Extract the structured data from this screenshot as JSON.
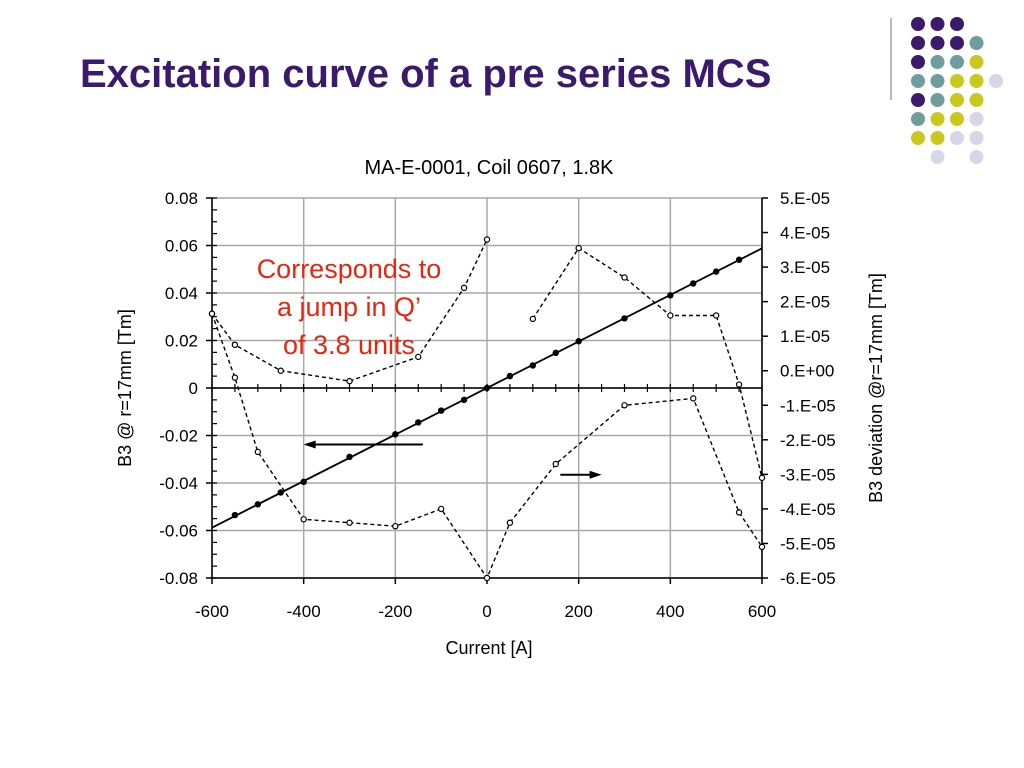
{
  "slide": {
    "title": "Excitation curve of a pre series MCS"
  },
  "decoration": {
    "dots": [
      [
        "#3b1a6e",
        "#3b1a6e",
        "#3b1a6e",
        "",
        ""
      ],
      [
        "#3b1a6e",
        "#3b1a6e",
        "#3b1a6e",
        "#6f9c9c",
        ""
      ],
      [
        "#3b1a6e",
        "#6f9c9c",
        "#6f9c9c",
        "#c8c81e",
        ""
      ],
      [
        "#6f9c9c",
        "#6f9c9c",
        "#c8c81e",
        "#c8c81e",
        "#d6d6e8"
      ],
      [
        "#3b1a6e",
        "#6f9c9c",
        "#c8c81e",
        "#c8c81e",
        ""
      ],
      [
        "#6f9c9c",
        "#c8c81e",
        "#c8c81e",
        "#d6d6e8",
        ""
      ],
      [
        "#c8c81e",
        "#c8c81e",
        "#d6d6e8",
        "#d6d6e8",
        ""
      ],
      [
        "",
        "#d6d6e8",
        "",
        "#d6d6e8",
        ""
      ]
    ]
  },
  "callout": {
    "lines": [
      "Corresponds to",
      "a jump in Q’",
      "of 3.8 units"
    ],
    "color": "#e8250f"
  },
  "chart_data": {
    "type": "line",
    "title": "MA-E-0001, Coil 0607, 1.8K",
    "xlabel": "Current [A]",
    "ylabel": "B3 @ r=17mm [Tm]",
    "y2label": "B3 deviation @r=17mm [Tm]",
    "xlim": [
      -600,
      600
    ],
    "ylim": [
      -0.08,
      0.08
    ],
    "y2lim": [
      -6e-05,
      5e-05
    ],
    "grid": true,
    "xticks": [
      -600,
      -400,
      -200,
      0,
      200,
      400,
      600
    ],
    "xtick_labels": [
      "-600",
      "-400",
      "-200",
      "0",
      "200",
      "400",
      "600"
    ],
    "yticks": [
      0.08,
      0.06,
      0.04,
      0.02,
      0,
      -0.02,
      -0.04,
      -0.06,
      -0.08
    ],
    "ytick_labels": [
      "0.08",
      "0.06",
      "0.04",
      "0.02",
      "0",
      "-0.02",
      "-0.04",
      "-0.06",
      "-0.08"
    ],
    "y2ticks": [
      5e-05,
      4e-05,
      3e-05,
      2e-05,
      1e-05,
      0,
      -1e-05,
      -2e-05,
      -3e-05,
      -4e-05,
      -5e-05,
      -6e-05
    ],
    "y2tick_labels": [
      "5.E-05",
      "4.E-05",
      "3.E-05",
      "2.E-05",
      "1.E-05",
      "0.E+00",
      "-1.E-05",
      "-2.E-05",
      "-3.E-05",
      "-4.E-05",
      "-5.E-05",
      "-6.E-05"
    ],
    "fit_line": {
      "x": [
        -600,
        600
      ],
      "y": [
        -0.0588,
        0.0588
      ]
    },
    "series": [
      {
        "axis": "left",
        "marker": "filled",
        "points": [
          [
            -550,
            -0.0535
          ],
          [
            -500,
            -0.049
          ],
          [
            -450,
            -0.044
          ],
          [
            -400,
            -0.0395
          ],
          [
            -300,
            -0.029
          ],
          [
            -200,
            -0.0195
          ],
          [
            -150,
            -0.0145
          ],
          [
            -100,
            -0.0095
          ],
          [
            -50,
            -0.005
          ],
          [
            0,
            0.0
          ],
          [
            50,
            0.005
          ],
          [
            100,
            0.0095
          ],
          [
            150,
            0.0148
          ],
          [
            200,
            0.0197
          ],
          [
            300,
            0.0293
          ],
          [
            400,
            0.039
          ],
          [
            450,
            0.044
          ],
          [
            500,
            0.049
          ],
          [
            550,
            0.054
          ]
        ]
      },
      {
        "axis": "right",
        "marker": "open",
        "segments": [
          [
            [
              -600,
              1.65e-05
            ],
            [
              -550,
              7.5e-06
            ],
            [
              -450,
              0.0
            ],
            [
              -300,
              -3e-06
            ],
            [
              -150,
              4e-06
            ],
            [
              -50,
              2.4e-05
            ],
            [
              0,
              3.8e-05
            ]
          ],
          [
            [
              100,
              1.5e-05
            ],
            [
              200,
              3.55e-05
            ],
            [
              300,
              2.7e-05
            ],
            [
              400,
              1.6e-05
            ],
            [
              500,
              1.6e-05
            ],
            [
              550,
              -4e-06
            ],
            [
              600,
              -3.1e-05
            ]
          ]
        ]
      },
      {
        "axis": "right",
        "marker": "open",
        "segments": [
          [
            [
              -600,
              1.65e-05
            ],
            [
              -550,
              -2e-06
            ],
            [
              -500,
              -2.35e-05
            ],
            [
              -400,
              -4.3e-05
            ],
            [
              -300,
              -4.4e-05
            ],
            [
              -200,
              -4.5e-05
            ],
            [
              -100,
              -4e-05
            ],
            [
              0,
              -6e-05
            ],
            [
              50,
              -4.4e-05
            ],
            [
              150,
              -2.7e-05
            ],
            [
              300,
              -1e-05
            ],
            [
              450,
              -8e-06
            ],
            [
              550,
              -4.1e-05
            ],
            [
              600,
              -5.1e-05
            ]
          ]
        ]
      }
    ],
    "arrows": [
      {
        "direction": "left",
        "x": [
          -140,
          -400
        ],
        "y": -0.0238
      },
      {
        "direction": "right",
        "x": [
          160,
          250
        ],
        "y": -0.0365
      }
    ]
  }
}
